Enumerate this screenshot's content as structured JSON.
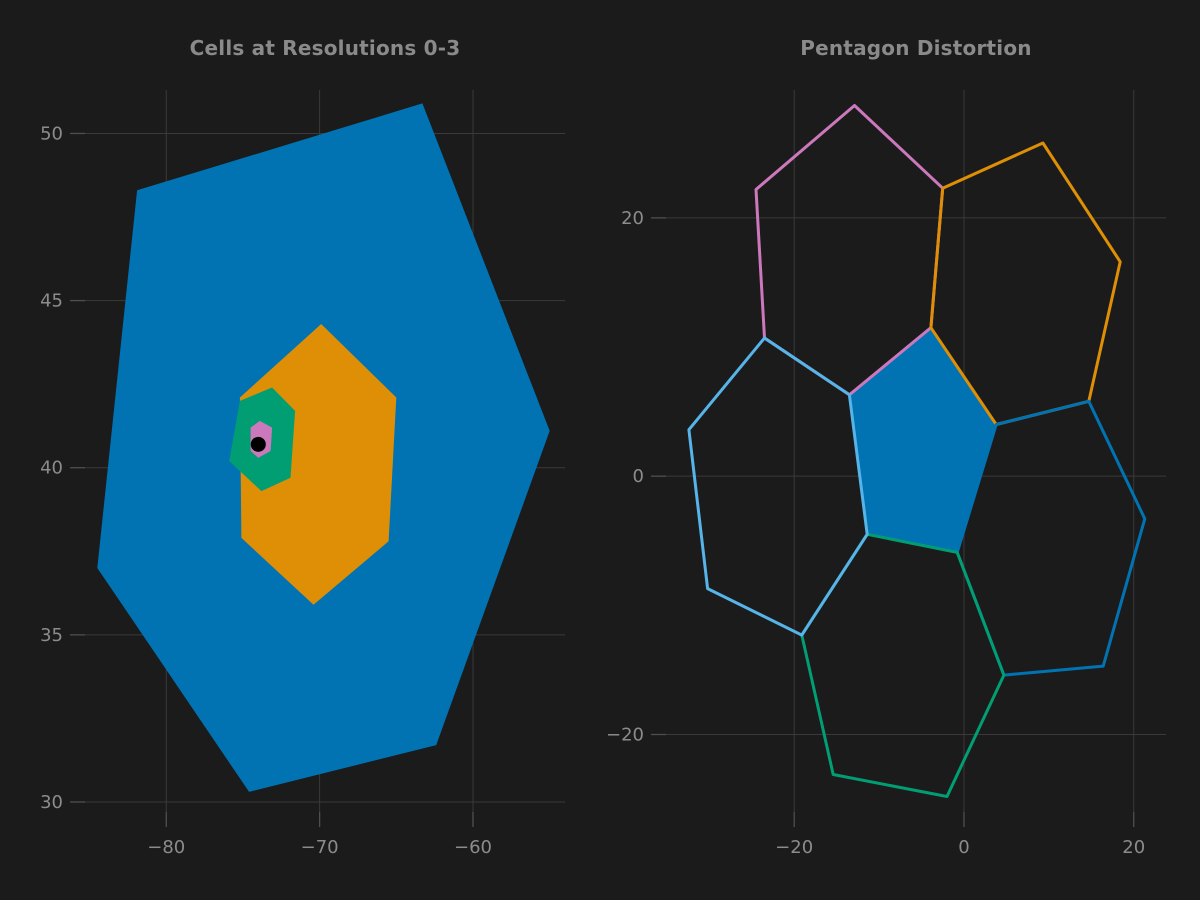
{
  "figure": {
    "background": "#1b1b1b",
    "grid_color": "#3a3a3a",
    "tick_color": "#4f4f4f",
    "text_color": "#8c8c8c",
    "title_color": "#8a8a8a"
  },
  "palette": {
    "blue": "#0173b2",
    "orange": "#de8f05",
    "green": "#029e73",
    "pink": "#cc78bc",
    "sky_blue": "#56b4e9",
    "black": "#000000"
  },
  "chart_data": [
    {
      "type": "polygon",
      "title": "Cells at Resolutions 0-3",
      "xlabel": "",
      "ylabel": "",
      "xlim": [
        -85.3,
        -54.0
      ],
      "ylim": [
        29.7,
        51.3
      ],
      "grid": true,
      "legend": null,
      "xticks": {
        "values": [
          -80,
          -70,
          -60
        ],
        "labels": [
          "−80",
          "−70",
          "−60"
        ]
      },
      "yticks": {
        "values": [
          30,
          35,
          40,
          45,
          50
        ],
        "labels": [
          "30",
          "35",
          "40",
          "45",
          "50"
        ]
      },
      "series": [
        {
          "name": "resolution-0-cell",
          "role": "fill",
          "color": "#0173b2",
          "points": [
            [
              -63.3,
              50.9
            ],
            [
              -55.0,
              41.1
            ],
            [
              -62.4,
              31.7
            ],
            [
              -74.6,
              30.3
            ],
            [
              -84.5,
              37.0
            ],
            [
              -81.9,
              48.3
            ]
          ]
        },
        {
          "name": "resolution-1-cell",
          "role": "fill",
          "color": "#de8f05",
          "points": [
            [
              -69.9,
              44.3
            ],
            [
              -65.0,
              42.1
            ],
            [
              -65.5,
              37.8
            ],
            [
              -70.4,
              35.9
            ],
            [
              -75.1,
              37.9
            ],
            [
              -75.2,
              42.1
            ]
          ]
        },
        {
          "name": "resolution-2-cell",
          "role": "fill",
          "color": "#029e73",
          "points": [
            [
              -73.1,
              42.4
            ],
            [
              -71.6,
              41.7
            ],
            [
              -71.9,
              39.7
            ],
            [
              -73.8,
              39.3
            ],
            [
              -75.9,
              40.2
            ],
            [
              -75.2,
              42.0
            ]
          ]
        },
        {
          "name": "resolution-3-cell",
          "role": "fill",
          "color": "#cc78bc",
          "points": [
            [
              -73.9,
              41.4
            ],
            [
              -73.1,
              41.2
            ],
            [
              -73.2,
              40.5
            ],
            [
              -74.0,
              40.3
            ],
            [
              -74.5,
              40.5
            ],
            [
              -74.5,
              41.2
            ]
          ]
        },
        {
          "name": "center-point",
          "role": "point",
          "color": "#000000",
          "x": -74.0,
          "y": 40.7,
          "radius_px": 7.5
        }
      ]
    },
    {
      "type": "polygon",
      "title": "Pentagon Distortion",
      "xlabel": "",
      "ylabel": "",
      "xlim": [
        -35.1,
        23.8
      ],
      "ylim": [
        -26.0,
        29.9
      ],
      "grid": true,
      "legend": null,
      "xticks": {
        "values": [
          -20,
          0,
          20
        ],
        "labels": [
          "−20",
          "0",
          "20"
        ]
      },
      "yticks": {
        "values": [
          -20,
          0,
          20
        ],
        "labels": [
          "−20",
          "0",
          "20"
        ]
      },
      "series": [
        {
          "name": "pentagon-cell",
          "role": "fill",
          "color": "#0173b2",
          "points": [
            [
              -3.9,
              11.5
            ],
            [
              3.8,
              4.0
            ],
            [
              -0.8,
              -5.9
            ],
            [
              -11.4,
              -4.5
            ],
            [
              -13.5,
              6.3
            ]
          ]
        },
        {
          "name": "neighbor-cell-nw",
          "role": "outline",
          "color": "#cc78bc",
          "width": 3,
          "points": [
            [
              -12.9,
              28.7
            ],
            [
              -2.5,
              22.3
            ],
            [
              -3.9,
              11.5
            ],
            [
              -13.5,
              6.3
            ],
            [
              -23.5,
              10.7
            ],
            [
              -24.5,
              22.2
            ]
          ]
        },
        {
          "name": "neighbor-cell-ne",
          "role": "outline",
          "color": "#de8f05",
          "width": 3,
          "points": [
            [
              -2.5,
              22.3
            ],
            [
              9.3,
              25.8
            ],
            [
              18.4,
              16.6
            ],
            [
              14.7,
              5.8
            ],
            [
              3.8,
              4.0
            ],
            [
              -3.9,
              11.5
            ]
          ]
        },
        {
          "name": "neighbor-cell-e",
          "role": "outline",
          "color": "#0173b2",
          "width": 3,
          "points": [
            [
              3.8,
              4.0
            ],
            [
              14.7,
              5.8
            ],
            [
              21.3,
              -3.3
            ],
            [
              16.4,
              -14.7
            ],
            [
              4.7,
              -15.4
            ],
            [
              -0.8,
              -5.9
            ]
          ]
        },
        {
          "name": "neighbor-cell-s",
          "role": "outline",
          "color": "#029e73",
          "width": 3,
          "points": [
            [
              -0.8,
              -5.9
            ],
            [
              4.7,
              -15.4
            ],
            [
              -2.0,
              -24.8
            ],
            [
              -15.4,
              -23.1
            ],
            [
              -19.1,
              -12.3
            ],
            [
              -11.4,
              -4.5
            ]
          ]
        },
        {
          "name": "neighbor-cell-w",
          "role": "outline",
          "color": "#56b4e9",
          "width": 3,
          "points": [
            [
              -13.5,
              6.3
            ],
            [
              -11.4,
              -4.5
            ],
            [
              -19.1,
              -12.3
            ],
            [
              -30.2,
              -8.7
            ],
            [
              -32.4,
              3.6
            ],
            [
              -23.5,
              10.7
            ]
          ]
        }
      ]
    }
  ]
}
